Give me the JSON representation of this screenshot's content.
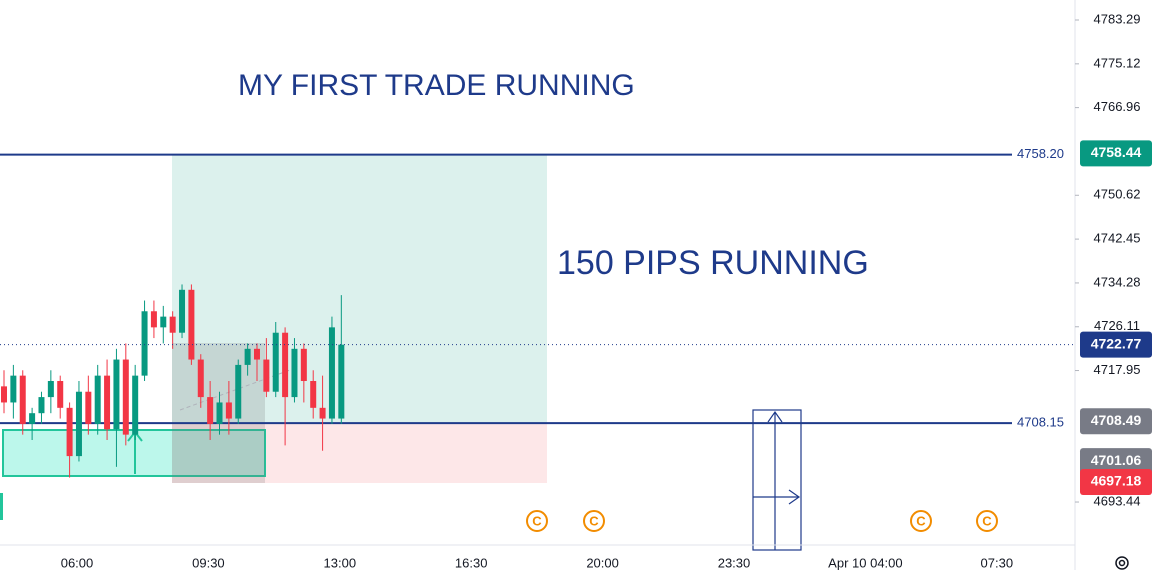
{
  "chart_data": {
    "type": "candlestick",
    "annotations": [
      "MY FIRST TRADE RUNNING",
      "150 PIPS RUNNING"
    ],
    "x_labels": [
      "06:00",
      "09:30",
      "13:00",
      "16:30",
      "20:00",
      "23:30",
      "Apr 10 04:00",
      "07:30"
    ],
    "open": [
      4715,
      4712,
      4717,
      4708,
      4710,
      4713,
      4716,
      4711,
      4702,
      4714,
      4708,
      4717,
      4707,
      4720,
      4706,
      4717,
      4729,
      4726,
      4728,
      4725,
      4733,
      4720,
      4713,
      4708,
      4712,
      4709,
      4719,
      4722,
      4720,
      4714,
      4725,
      4713,
      4722,
      4716,
      4711,
      4709,
      4709
    ],
    "high": [
      4718,
      4719,
      4718,
      4711,
      4714,
      4718,
      4717,
      4712,
      4716,
      4717,
      4719,
      4720,
      4722,
      4723,
      4719,
      4731,
      4731,
      4730,
      4729,
      4734,
      4734,
      4721,
      4716,
      4714,
      4716,
      4720,
      4723,
      4723,
      4724,
      4727,
      4726,
      4724,
      4723,
      4718,
      4717,
      4728,
      4732
    ],
    "low": [
      4710,
      4709,
      4706,
      4705,
      4708,
      4710,
      4709,
      4698,
      4701,
      4706,
      4706,
      4705,
      4700,
      4704,
      4705,
      4716,
      4724,
      4723,
      4722,
      4724,
      4719,
      4711,
      4705,
      4706,
      4706,
      4708,
      4717,
      4716,
      4713,
      4713,
      4704,
      4712,
      4712,
      4709,
      4703,
      4708,
      4708
    ],
    "close": [
      4712,
      4717,
      4708,
      4710,
      4713,
      4716,
      4711,
      4702,
      4714,
      4708,
      4717,
      4707,
      4720,
      4706,
      4717,
      4729,
      4726,
      4728,
      4725,
      4733,
      4720,
      4713,
      4708,
      4712,
      4709,
      4719,
      4722,
      4720,
      4714,
      4725,
      4713,
      4722,
      4716,
      4711,
      4709,
      4726,
      4722.77
    ],
    "up_color": "#089981",
    "down_color": "#f23645",
    "ylim": [
      4685.43,
      4787.02
    ],
    "yticks": [
      4783.29,
      4775.12,
      4766.96,
      4750.62,
      4742.45,
      4734.28,
      4726.11,
      4717.95,
      4693.44
    ],
    "levels": [
      {
        "value": 4758.2,
        "label": "4758.20"
      },
      {
        "value": 4708.15,
        "label": "4708.15"
      }
    ],
    "level_color": "#1e3a8a",
    "price_tags": [
      {
        "value": 4758.44,
        "color": "#089981"
      },
      {
        "value": 4722.77,
        "color": "#1e3a8a"
      },
      {
        "value": 4708.49,
        "color": "#787b86"
      },
      {
        "value": 4701.06,
        "color": "#787b86"
      },
      {
        "value": 4697.18,
        "color": "#f23645"
      }
    ]
  }
}
